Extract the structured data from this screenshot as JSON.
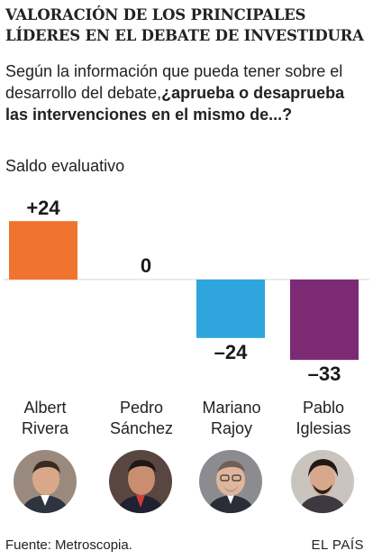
{
  "title_line1": "VALORACIÓN DE LOS PRINCIPALES",
  "title_line2": "LÍDERES EN EL DEBATE DE INVESTIDURA",
  "question_plain": "Según la información que pueda tener sobre el desarrollo del debate,",
  "question_bold": "¿aprueba o desaprueba las intervenciones en el mismo de...?",
  "subtitle": "Saldo evaluativo",
  "source": "Fuente: Metroscopia.",
  "brand": "EL PAÍS",
  "chart_data": {
    "type": "bar",
    "categories": [
      "Albert Rivera",
      "Pedro Sánchez",
      "Mariano Rajoy",
      "Pablo Iglesias"
    ],
    "values": [
      24,
      0,
      -24,
      -33
    ],
    "value_labels": [
      "+24",
      "0",
      "–24",
      "–33"
    ],
    "colors": [
      "#f0742e",
      "#e0e0e0",
      "#2ea6dd",
      "#7d2a75"
    ],
    "ylim": [
      -33,
      24
    ],
    "zero_line": true,
    "grid": false,
    "legend": "none"
  },
  "leaders": [
    {
      "first": "Albert",
      "last": "Rivera",
      "photo": "albert-rivera-portrait"
    },
    {
      "first": "Pedro",
      "last": "Sánchez",
      "photo": "pedro-sanchez-portrait"
    },
    {
      "first": "Mariano",
      "last": "Rajoy",
      "photo": "mariano-rajoy-portrait"
    },
    {
      "first": "Pablo",
      "last": "Iglesias",
      "photo": "pablo-iglesias-portrait"
    }
  ]
}
